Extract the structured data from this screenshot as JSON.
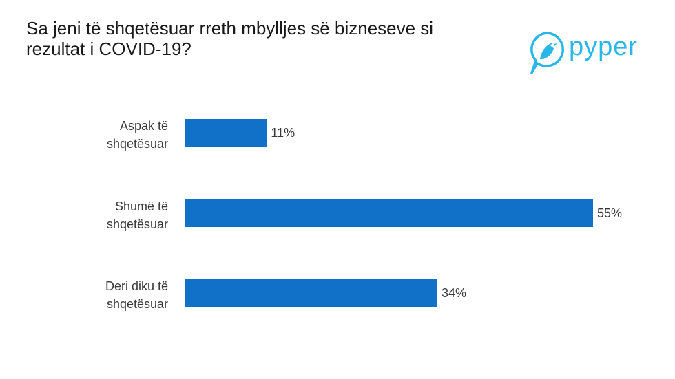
{
  "slide": {
    "title_line1": "Sa jeni të shqetësuar rreth mbylljes së bizneseve si",
    "title_line2": "rezultat i COVID-19?"
  },
  "logo": {
    "text": "pyper",
    "icon": "bird-icon",
    "color": "#29b6e8"
  },
  "chart_data": {
    "type": "bar",
    "orientation": "horizontal",
    "categories": [
      [
        "Aspak të",
        "shqetësuar"
      ],
      [
        "Shumë të",
        "shqetësuar"
      ],
      [
        "Deri diku të",
        "shqetësuar"
      ]
    ],
    "values": [
      11,
      55,
      34
    ],
    "value_labels": [
      "11%",
      "55%",
      "34%"
    ],
    "xlim": [
      0,
      55
    ],
    "bar_color": "#1170c8",
    "grid": false,
    "legend": false
  }
}
